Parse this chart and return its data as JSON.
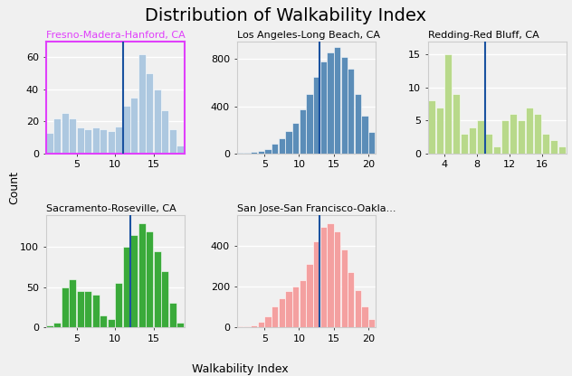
{
  "title": "Distribution of Walkability Index",
  "xlabel": "Walkability Index",
  "ylabel": "Count",
  "subplots": [
    {
      "name": "Fresno-Madera-Hanford, CA",
      "color": "#adc8e0",
      "mean_line": 11.0,
      "xlim": [
        1,
        19
      ],
      "ylim": [
        0,
        70
      ],
      "yticks": [
        0,
        20,
        40,
        60
      ],
      "xticks": [
        5,
        10,
        15
      ],
      "border_color": "#e040fb",
      "bins_data": [
        13,
        22,
        25,
        22,
        16,
        15,
        16,
        15,
        14,
        17,
        30,
        35,
        62,
        50,
        40,
        27,
        15,
        5
      ]
    },
    {
      "name": "Los Angeles-Long Beach, CA",
      "color": "#5b8db8",
      "mean_line": 13.0,
      "xlim": [
        1,
        21
      ],
      "ylim": [
        0,
        950
      ],
      "yticks": [
        0,
        400,
        800
      ],
      "xticks": [
        5,
        10,
        15,
        20
      ],
      "border_color": null,
      "bins_data": [
        2,
        5,
        10,
        20,
        40,
        80,
        130,
        190,
        260,
        370,
        500,
        650,
        780,
        860,
        900,
        820,
        720,
        500,
        320,
        180
      ]
    },
    {
      "name": "Redding-Red Bluff, CA",
      "color": "#b8d98a",
      "mean_line": 9.0,
      "xlim": [
        2,
        19
      ],
      "ylim": [
        0,
        17
      ],
      "yticks": [
        0,
        5,
        10,
        15
      ],
      "xticks": [
        4,
        8,
        12,
        16
      ],
      "border_color": null,
      "bins_data": [
        8,
        7,
        15,
        9,
        3,
        4,
        5,
        3,
        1,
        5,
        6,
        5,
        7,
        6,
        3,
        2,
        1
      ]
    },
    {
      "name": "Sacramento-Roseville, CA",
      "color": "#3aaa3a",
      "mean_line": 12.0,
      "xlim": [
        1,
        19
      ],
      "ylim": [
        0,
        140
      ],
      "yticks": [
        0,
        50,
        100
      ],
      "xticks": [
        5,
        10,
        15
      ],
      "border_color": null,
      "bins_data": [
        2,
        5,
        50,
        60,
        45,
        45,
        40,
        15,
        10,
        55,
        100,
        115,
        130,
        120,
        95,
        70,
        30,
        5
      ]
    },
    {
      "name": "San Jose-San Francisco-Oakla...",
      "color": "#f4a0a0",
      "mean_line": 13.0,
      "xlim": [
        1,
        21
      ],
      "ylim": [
        0,
        550
      ],
      "yticks": [
        0,
        200,
        400
      ],
      "xticks": [
        5,
        10,
        15,
        20
      ],
      "border_color": null,
      "bins_data": [
        2,
        5,
        10,
        25,
        55,
        100,
        140,
        175,
        200,
        230,
        310,
        420,
        490,
        510,
        470,
        380,
        270,
        180,
        100,
        40
      ]
    }
  ],
  "bg_color": "#f0f0f0",
  "grid_color": "#ffffff",
  "title_fontsize": 14,
  "label_fontsize": 9,
  "tick_fontsize": 8,
  "subplot_title_fontsize": 8
}
